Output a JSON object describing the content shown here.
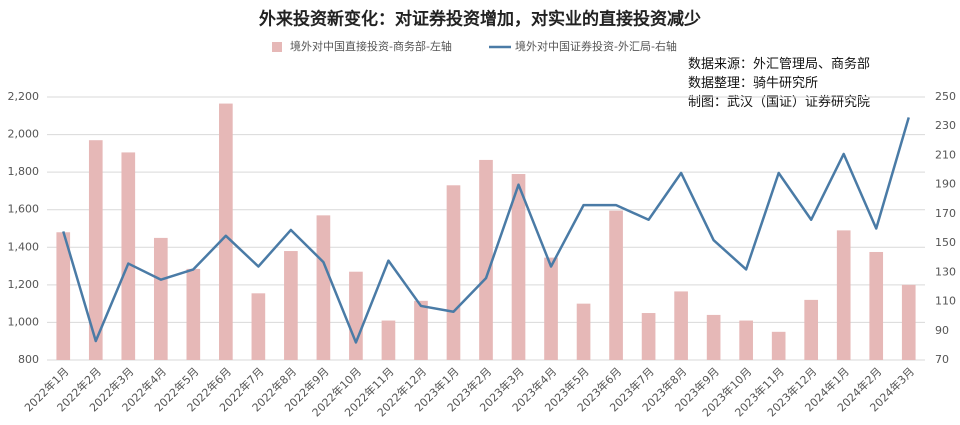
{
  "chart_data": {
    "type": "bar_line",
    "title": "外来投资新变化：对证券投资增加，对实业的直接投资减少",
    "annotations": [
      "数据来源：外汇管理局、商务部",
      "数据整理：骑牛研究所",
      "制图：武汉（国证）证券研究院"
    ],
    "categories": [
      "2022年1月",
      "2022年2月",
      "2022年3月",
      "2022年4月",
      "2022年5月",
      "2022年6月",
      "2022年7月",
      "2022年8月",
      "2022年9月",
      "2022年10月",
      "2022年11月",
      "2022年12月",
      "2023年1月",
      "2023年2月",
      "2023年3月",
      "2023年4月",
      "2023年5月",
      "2023年6月",
      "2023年7月",
      "2023年8月",
      "2023年9月",
      "2023年10月",
      "2023年11月",
      "2023年12月",
      "2024年1月",
      "2024年2月",
      "2024年3月"
    ],
    "series": [
      {
        "name": "境外对中国直接投资-商务部-左轴",
        "type": "bar",
        "color": "#e6b8b7",
        "values": [
          1480,
          1970,
          1905,
          1450,
          1285,
          2165,
          1155,
          1380,
          1570,
          1270,
          1010,
          1115,
          1730,
          1865,
          1790,
          1345,
          1100,
          1595,
          1050,
          1165,
          1040,
          1010,
          950,
          1120,
          1490,
          1375,
          1200
        ]
      },
      {
        "name": "境外对中国证券投资-外汇局-右轴",
        "type": "line",
        "axis": "y2",
        "color": "#4a7ba6",
        "values": [
          158,
          83,
          136,
          125,
          132,
          155,
          134,
          159,
          137,
          82,
          138,
          107,
          103,
          126,
          190,
          134,
          176,
          176,
          166,
          198,
          152,
          132,
          198,
          166,
          211,
          160,
          236
        ]
      }
    ],
    "ylim": [
      800,
      2200
    ],
    "yticks": [
      800,
      {
        "value": 1000,
        "label": "1,000"
      },
      {
        "value": 1200,
        "label": "1,200"
      },
      {
        "value": 1400,
        "label": "1,400"
      },
      {
        "value": 1600,
        "label": "1,600"
      },
      {
        "value": 1800,
        "label": "1,800"
      },
      {
        "value": 2000,
        "label": "2,000"
      },
      {
        "value": 2200,
        "label": "2,200"
      }
    ],
    "y2lim": [
      70,
      250
    ],
    "y2ticks": [
      70,
      90,
      110,
      130,
      150,
      170,
      190,
      210,
      230,
      250
    ],
    "grid": true
  }
}
